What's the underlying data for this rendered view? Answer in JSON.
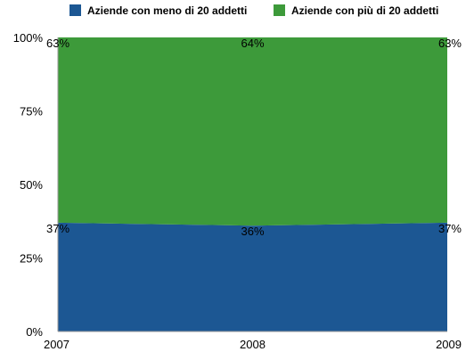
{
  "chart_data": {
    "type": "area",
    "stacked": "percent",
    "categories": [
      "2007",
      "2008",
      "2009"
    ],
    "series": [
      {
        "name": "Aziende con meno di 20 addetti",
        "values": [
          37,
          36,
          37
        ],
        "labels": [
          "37%",
          "36%",
          "37%"
        ],
        "color": "#1c5793"
      },
      {
        "name": "Aziende con più di 20 addetti",
        "values": [
          63,
          64,
          63
        ],
        "labels": [
          "63%",
          "64%",
          "63%"
        ],
        "color": "#3d9a3a"
      }
    ],
    "yticks": [
      "0%",
      "25%",
      "50%",
      "75%",
      "100%"
    ],
    "ylim": [
      0,
      100
    ],
    "legend_position": "top",
    "grid": false
  }
}
